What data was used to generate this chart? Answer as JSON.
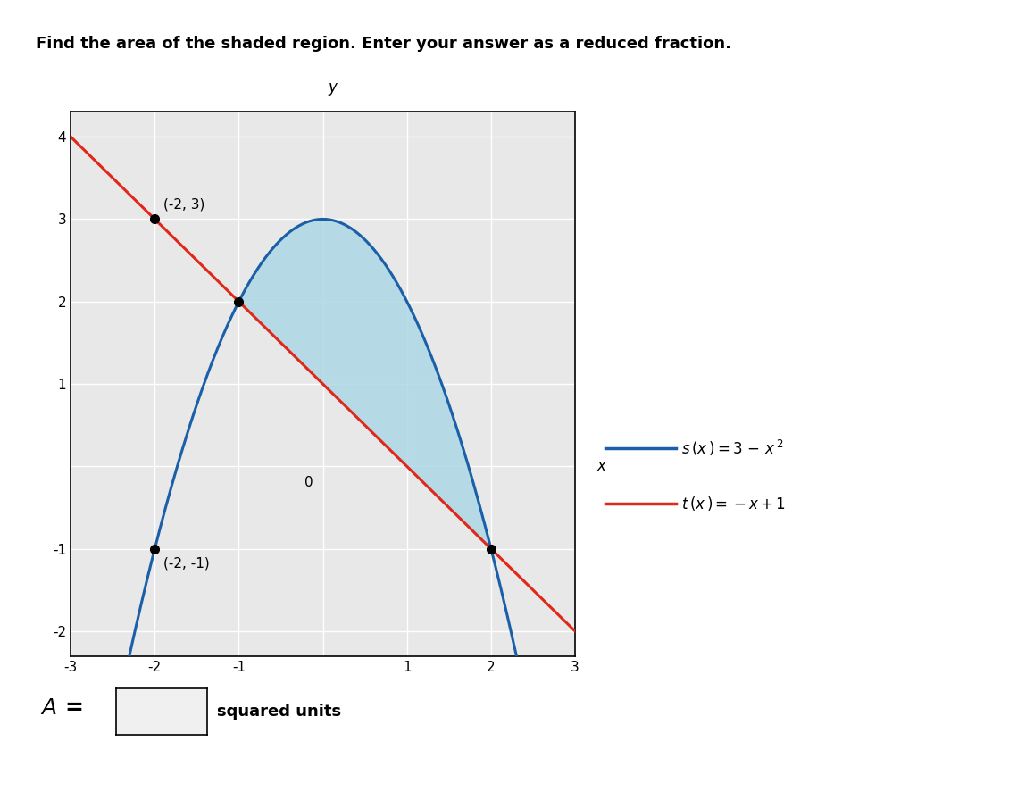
{
  "title": "Find the area of the shaded region. Enter your answer as a reduced fraction.",
  "point1_label": "(-2, 3)",
  "point2_label": "(-2, -1)",
  "xlim": [
    -3,
    3
  ],
  "ylim": [
    -2.3,
    4.3
  ],
  "xticks": [
    -3,
    -2,
    -1,
    0,
    1,
    2,
    3
  ],
  "yticks": [
    -2,
    -1,
    0,
    1,
    2,
    3,
    4
  ],
  "shade_color": "#add8e6",
  "shade_alpha": 0.85,
  "parabola_color": "#1a5fa8",
  "line_color": "#e0281a",
  "bg_color": "#ffffff",
  "axes_bg_color": "#e8e8e8",
  "grid_color": "#ffffff",
  "figsize": [
    11.3,
    8.96
  ]
}
